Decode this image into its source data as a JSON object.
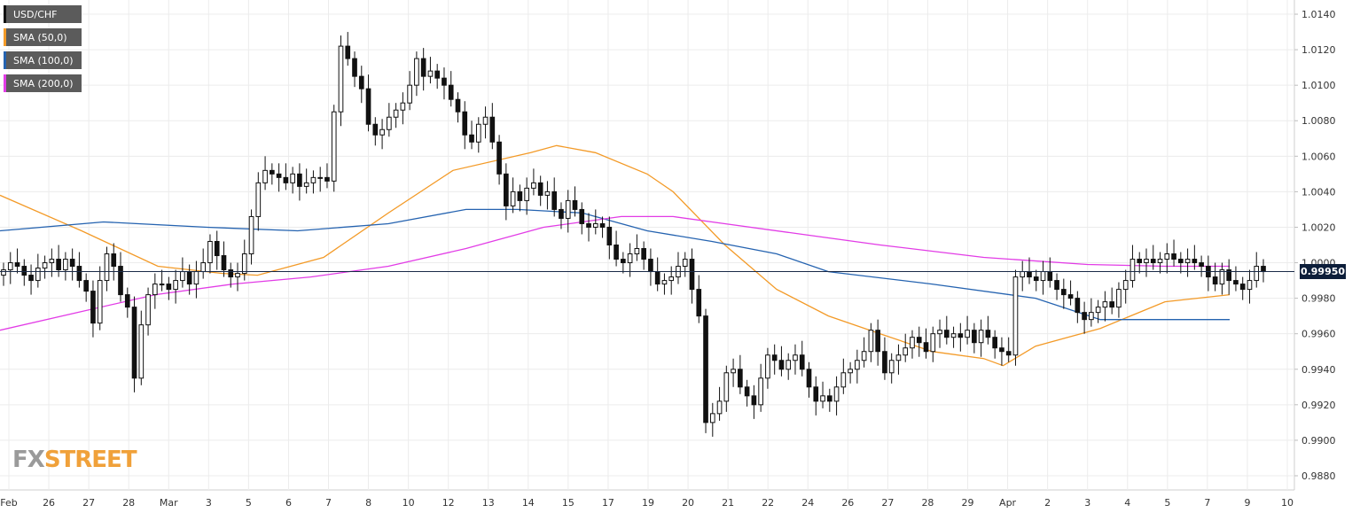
{
  "legend": {
    "items": [
      {
        "label": "USD/CHF",
        "color": "#111111"
      },
      {
        "label": "SMA (50,0)",
        "color": "#f39a27"
      },
      {
        "label": "SMA (100,0)",
        "color": "#2563b0"
      },
      {
        "label": "SMA (200,0)",
        "color": "#e23ce6"
      }
    ]
  },
  "logo": {
    "fx": "FX",
    "street": "STREET"
  },
  "price_badge": {
    "value": "0.99950"
  },
  "chart_data": {
    "type": "candlestick",
    "title": "",
    "xlabel": "",
    "ylabel": "",
    "ylim": [
      0.9872,
      1.0148
    ],
    "y_ticks": [
      "1.0140",
      "1.0120",
      "1.0100",
      "1.0080",
      "1.0060",
      "1.0040",
      "1.0020",
      "1.0000",
      "0.9980",
      "0.9960",
      "0.9940",
      "0.9920",
      "0.9900",
      "0.9880"
    ],
    "x_ticks": [
      "Feb",
      "26",
      "27",
      "28",
      "Mar",
      "3",
      "5",
      "6",
      "7",
      "8",
      "10",
      "12",
      "13",
      "14",
      "15",
      "17",
      "19",
      "20",
      "21",
      "22",
      "24",
      "26",
      "27",
      "28",
      "29",
      "Apr",
      "2",
      "3",
      "4",
      "5",
      "7",
      "9",
      "10"
    ],
    "current_price": 0.9995,
    "grid": true,
    "ohlc_close": [
      0.9996,
      1.0,
      0.9998,
      0.9993,
      0.999,
      0.9997,
      1.0,
      1.0002,
      0.9996,
      1.0002,
      0.9998,
      0.999,
      0.9984,
      0.9966,
      0.999,
      1.0005,
      0.9998,
      0.9982,
      0.9975,
      0.9935,
      0.9965,
      0.9982,
      0.9988,
      0.9988,
      0.9985,
      0.999,
      0.9995,
      0.9988,
      0.9995,
      1.0,
      1.0012,
      1.0004,
      0.9996,
      0.9992,
      0.9994,
      1.0005,
      1.0026,
      1.0045,
      1.0052,
      1.005,
      1.0048,
      1.0045,
      1.005,
      1.0043,
      1.0045,
      1.0048,
      1.0048,
      1.0046,
      1.0085,
      1.0122,
      1.0115,
      1.0105,
      1.0098,
      1.0078,
      1.0072,
      1.0075,
      1.0082,
      1.0086,
      1.009,
      1.01,
      1.0115,
      1.0105,
      1.0108,
      1.0104,
      1.01,
      1.0092,
      1.0085,
      1.0072,
      1.0068,
      1.0078,
      1.0082,
      1.0068,
      1.005,
      1.0032,
      1.004,
      1.0035,
      1.0042,
      1.0045,
      1.0038,
      1.004,
      1.003,
      1.0025,
      1.0035,
      1.003,
      1.0022,
      1.002,
      1.0022,
      1.002,
      1.001,
      1.0002,
      1.0,
      1.0005,
      1.0008,
      1.0002,
      0.9995,
      0.9988,
      0.999,
      0.9992,
      0.9998,
      1.0002,
      0.9985,
      0.997,
      0.991,
      0.9915,
      0.9922,
      0.9938,
      0.994,
      0.993,
      0.9925,
      0.992,
      0.9935,
      0.9948,
      0.9945,
      0.994,
      0.9945,
      0.9948,
      0.994,
      0.993,
      0.9922,
      0.9925,
      0.9922,
      0.993,
      0.9938,
      0.994,
      0.9945,
      0.995,
      0.9962,
      0.995,
      0.9938,
      0.9945,
      0.9948,
      0.9952,
      0.9958,
      0.9955,
      0.995,
      0.996,
      0.9962,
      0.9958,
      0.996,
      0.9958,
      0.9962,
      0.9955,
      0.9962,
      0.9958,
      0.9952,
      0.995,
      0.9948,
      0.9992,
      0.9995,
      0.9992,
      0.999,
      0.9995,
      0.999,
      0.9985,
      0.9982,
      0.998,
      0.9972,
      0.9968,
      0.9972,
      0.9975,
      0.9978,
      0.9975,
      0.9985,
      0.999,
      1.0002,
      1.0,
      1.0002,
      1.0,
      1.0002,
      1.0005,
      1.0002,
      1.0,
      1.0002,
      1.0,
      0.9998,
      0.9992,
      0.9988,
      0.9996,
      0.999,
      0.9988,
      0.9985,
      0.999,
      0.9998,
      0.9995
    ],
    "sma_50": [
      [
        0.0,
        1.0038
      ],
      [
        0.063,
        1.0018
      ],
      [
        0.122,
        0.9998
      ],
      [
        0.172,
        0.9994
      ],
      [
        0.199,
        0.9993
      ],
      [
        0.25,
        1.0003
      ],
      [
        0.3,
        1.0028
      ],
      [
        0.35,
        1.0052
      ],
      [
        0.41,
        1.0062
      ],
      [
        0.43,
        1.0066
      ],
      [
        0.46,
        1.0062
      ],
      [
        0.5,
        1.005
      ],
      [
        0.52,
        1.004
      ],
      [
        0.56,
        1.001
      ],
      [
        0.6,
        0.9985
      ],
      [
        0.64,
        0.997
      ],
      [
        0.68,
        0.996
      ],
      [
        0.72,
        0.995
      ],
      [
        0.76,
        0.9946
      ],
      [
        0.775,
        0.9942
      ],
      [
        0.8,
        0.9953
      ],
      [
        0.85,
        0.9963
      ],
      [
        0.9,
        0.9978
      ],
      [
        0.95,
        0.9982
      ]
    ],
    "sma_100": [
      [
        0.0,
        1.0018
      ],
      [
        0.08,
        1.0023
      ],
      [
        0.16,
        1.002
      ],
      [
        0.23,
        1.0018
      ],
      [
        0.3,
        1.0022
      ],
      [
        0.36,
        1.003
      ],
      [
        0.4,
        1.003
      ],
      [
        0.45,
        1.0028
      ],
      [
        0.5,
        1.0018
      ],
      [
        0.55,
        1.0012
      ],
      [
        0.6,
        1.0005
      ],
      [
        0.64,
        0.9995
      ],
      [
        0.72,
        0.9988
      ],
      [
        0.8,
        0.998
      ],
      [
        0.85,
        0.9968
      ],
      [
        0.9,
        0.9968
      ],
      [
        0.95,
        0.9968
      ]
    ],
    "sma_200": [
      [
        0.0,
        0.9962
      ],
      [
        0.06,
        0.9972
      ],
      [
        0.12,
        0.9982
      ],
      [
        0.18,
        0.9988
      ],
      [
        0.24,
        0.9992
      ],
      [
        0.3,
        0.9998
      ],
      [
        0.36,
        1.0008
      ],
      [
        0.42,
        1.002
      ],
      [
        0.48,
        1.0026
      ],
      [
        0.52,
        1.0026
      ],
      [
        0.56,
        1.0022
      ],
      [
        0.62,
        1.0016
      ],
      [
        0.68,
        1.001
      ],
      [
        0.76,
        1.0003
      ],
      [
        0.84,
        0.9999
      ],
      [
        0.9,
        0.9998
      ],
      [
        0.95,
        0.9998
      ]
    ]
  }
}
